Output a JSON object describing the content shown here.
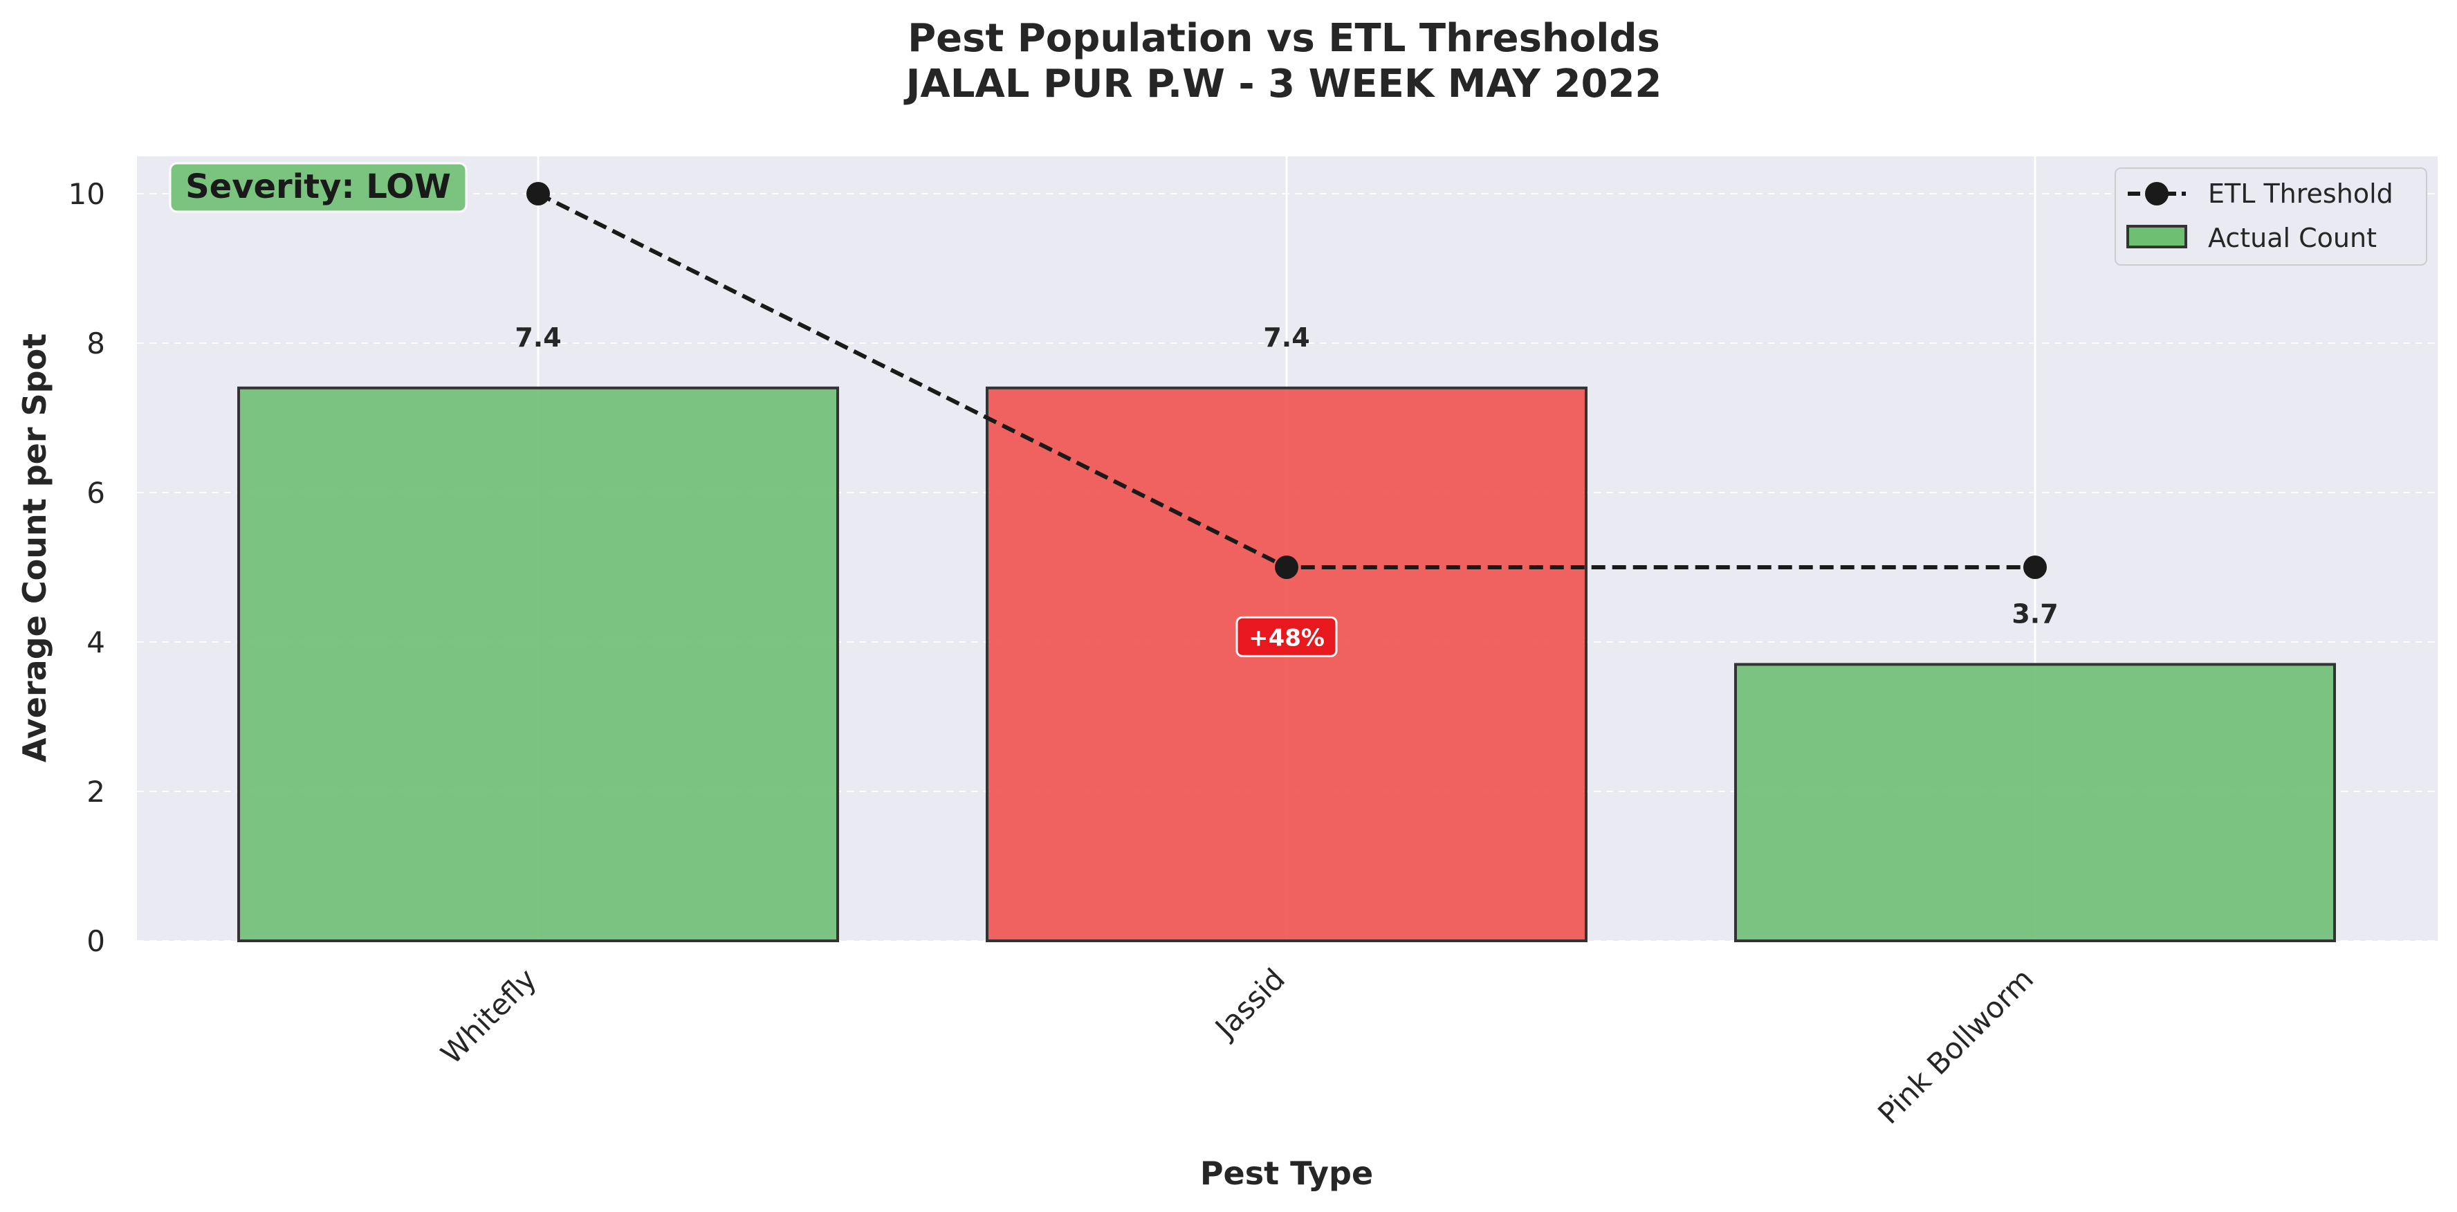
{
  "chart_data": {
    "type": "bar",
    "title": "Pest Population vs ETL Thresholds",
    "subtitle": "JALAL PUR P.W - 3 WEEK MAY 2022",
    "xlabel": "Pest Type",
    "ylabel": "Average Count per Spot",
    "categories": [
      "Whitefly",
      "Jassid",
      "Pink Bollworm"
    ],
    "series": [
      {
        "name": "Actual Count",
        "values": [
          7.4,
          7.4,
          3.7
        ],
        "value_labels": [
          "7.4",
          "7.4",
          "3.7"
        ],
        "colors": [
          "#6fbf73",
          "#ef5350",
          "#6fbf73"
        ]
      },
      {
        "name": "ETL Threshold",
        "values": [
          10,
          5,
          5
        ],
        "style": "dashed-line-markers",
        "color": "#1a1a1a"
      }
    ],
    "ylim": [
      0,
      10.5
    ],
    "yticks": [
      0,
      2,
      4,
      6,
      8,
      10
    ],
    "grid": true,
    "legend_position": "top-right",
    "annotations": [
      {
        "text": "Severity: LOW",
        "position": "top-left",
        "color": "#7bc47f"
      },
      {
        "text": "+48%",
        "category": "Jassid",
        "y": 3.7,
        "color": "#e8191e"
      }
    ]
  }
}
